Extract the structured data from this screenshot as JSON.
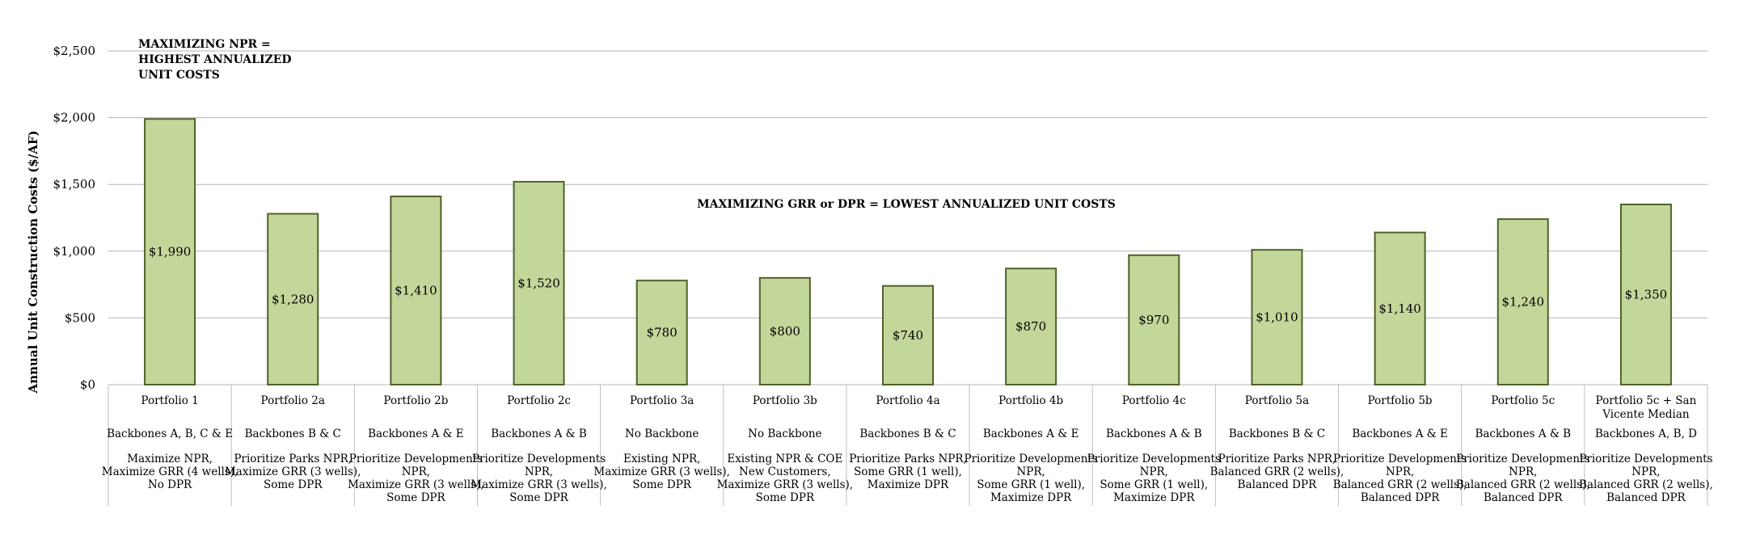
{
  "chart_data": {
    "type": "bar",
    "ylabel": "Annual Unit Construction  Costs ($/AF)",
    "ylim": [
      0,
      2500
    ],
    "yticks": [
      0,
      500,
      1000,
      1500,
      2000,
      2500
    ],
    "ytick_labels": [
      "$0",
      "$500",
      "$1,000",
      "$1,500",
      "$2,000",
      "$2,500"
    ],
    "grid": true,
    "bar_color": "#c4d79b",
    "bar_edge_color": "#4f6228",
    "categories": [
      "Portfolio 1",
      "Portfolio 2a",
      "Portfolio 2b",
      "Portfolio 2c",
      "Portfolio 3a",
      "Portfolio 3b",
      "Portfolio 4a",
      "Portfolio 4b",
      "Portfolio 4c",
      "Portfolio 5a",
      "Portfolio 5b",
      "Portfolio 5c",
      "Portfolio 5c + San Vicente Median"
    ],
    "values": [
      1990,
      1280,
      1410,
      1520,
      780,
      800,
      740,
      870,
      970,
      1010,
      1140,
      1240,
      1350
    ],
    "data_labels": [
      "$1,990",
      "$1,280",
      "$1,410",
      "$1,520",
      "$780",
      "$800",
      "$740",
      "$870",
      "$970",
      "$1,010",
      "$1,140",
      "$1,240",
      "$1,350"
    ],
    "category_details": [
      {
        "name": [
          "Portfolio 1"
        ],
        "backbone": "Backbones A, B, C & E",
        "strategy": [
          "Maximize NPR,",
          "Maximize GRR (4 wells),",
          "No DPR"
        ]
      },
      {
        "name": [
          "Portfolio 2a"
        ],
        "backbone": "Backbones B & C",
        "strategy": [
          "Prioritize Parks NPR,",
          "Maximize GRR (3 wells),",
          "Some DPR"
        ]
      },
      {
        "name": [
          "Portfolio 2b"
        ],
        "backbone": "Backbones A & E",
        "strategy": [
          "Prioritize Developments",
          "NPR,",
          "Maximize GRR (3 wells),",
          "Some DPR"
        ]
      },
      {
        "name": [
          "Portfolio 2c"
        ],
        "backbone": "Backbones A & B",
        "strategy": [
          "Prioritize Developments",
          "NPR,",
          "Maximize GRR (3 wells),",
          "Some DPR"
        ]
      },
      {
        "name": [
          "Portfolio 3a"
        ],
        "backbone": "No Backbone",
        "strategy": [
          "Existing NPR,",
          "Maximize GRR (3 wells),",
          "Some DPR"
        ]
      },
      {
        "name": [
          "Portfolio 3b"
        ],
        "backbone": "No Backbone",
        "strategy": [
          "Existing NPR & COE",
          "New Customers,",
          "Maximize GRR (3 wells),",
          "Some DPR"
        ]
      },
      {
        "name": [
          "Portfolio 4a"
        ],
        "backbone": "Backbones B & C",
        "strategy": [
          "Prioritize Parks NPR,",
          "Some GRR (1 well),",
          "Maximize DPR"
        ]
      },
      {
        "name": [
          "Portfolio 4b"
        ],
        "backbone": "Backbones A & E",
        "strategy": [
          "Prioritize Developments",
          "NPR,",
          "Some GRR (1 well),",
          "Maximize DPR"
        ]
      },
      {
        "name": [
          "Portfolio 4c"
        ],
        "backbone": "Backbones A & B",
        "strategy": [
          "Prioritize Developments",
          "NPR,",
          "Some GRR (1 well),",
          "Maximize DPR"
        ]
      },
      {
        "name": [
          "Portfolio 5a"
        ],
        "backbone": "Backbones B & C",
        "strategy": [
          "Prioritize Parks NPR,",
          "Balanced GRR (2 wells),",
          "Balanced DPR"
        ]
      },
      {
        "name": [
          "Portfolio 5b"
        ],
        "backbone": "Backbones A & E",
        "strategy": [
          "Prioritize Developments",
          "NPR,",
          "Balanced GRR (2 wells),",
          "Balanced DPR"
        ]
      },
      {
        "name": [
          "Portfolio 5c"
        ],
        "backbone": "Backbones A & B",
        "strategy": [
          "Prioritize Developments",
          "NPR,",
          "Balanced GRR (2 wells),",
          "Balanced DPR"
        ]
      },
      {
        "name": [
          "Portfolio 5c + San",
          "Vicente Median"
        ],
        "backbone": "Backbones A, B, D",
        "strategy": [
          "Prioritize Developments",
          "NPR,",
          "Balanced GRR (2 wells),",
          "Balanced DPR"
        ]
      }
    ],
    "annotations": [
      {
        "lines": [
          "MAXIMIZING NPR =",
          "HIGHEST ANNUALIZED",
          "UNIT COSTS"
        ]
      },
      {
        "lines": [
          "MAXIMIZING GRR or DPR = LOWEST ANNUALIZED UNIT COSTS"
        ]
      }
    ]
  }
}
